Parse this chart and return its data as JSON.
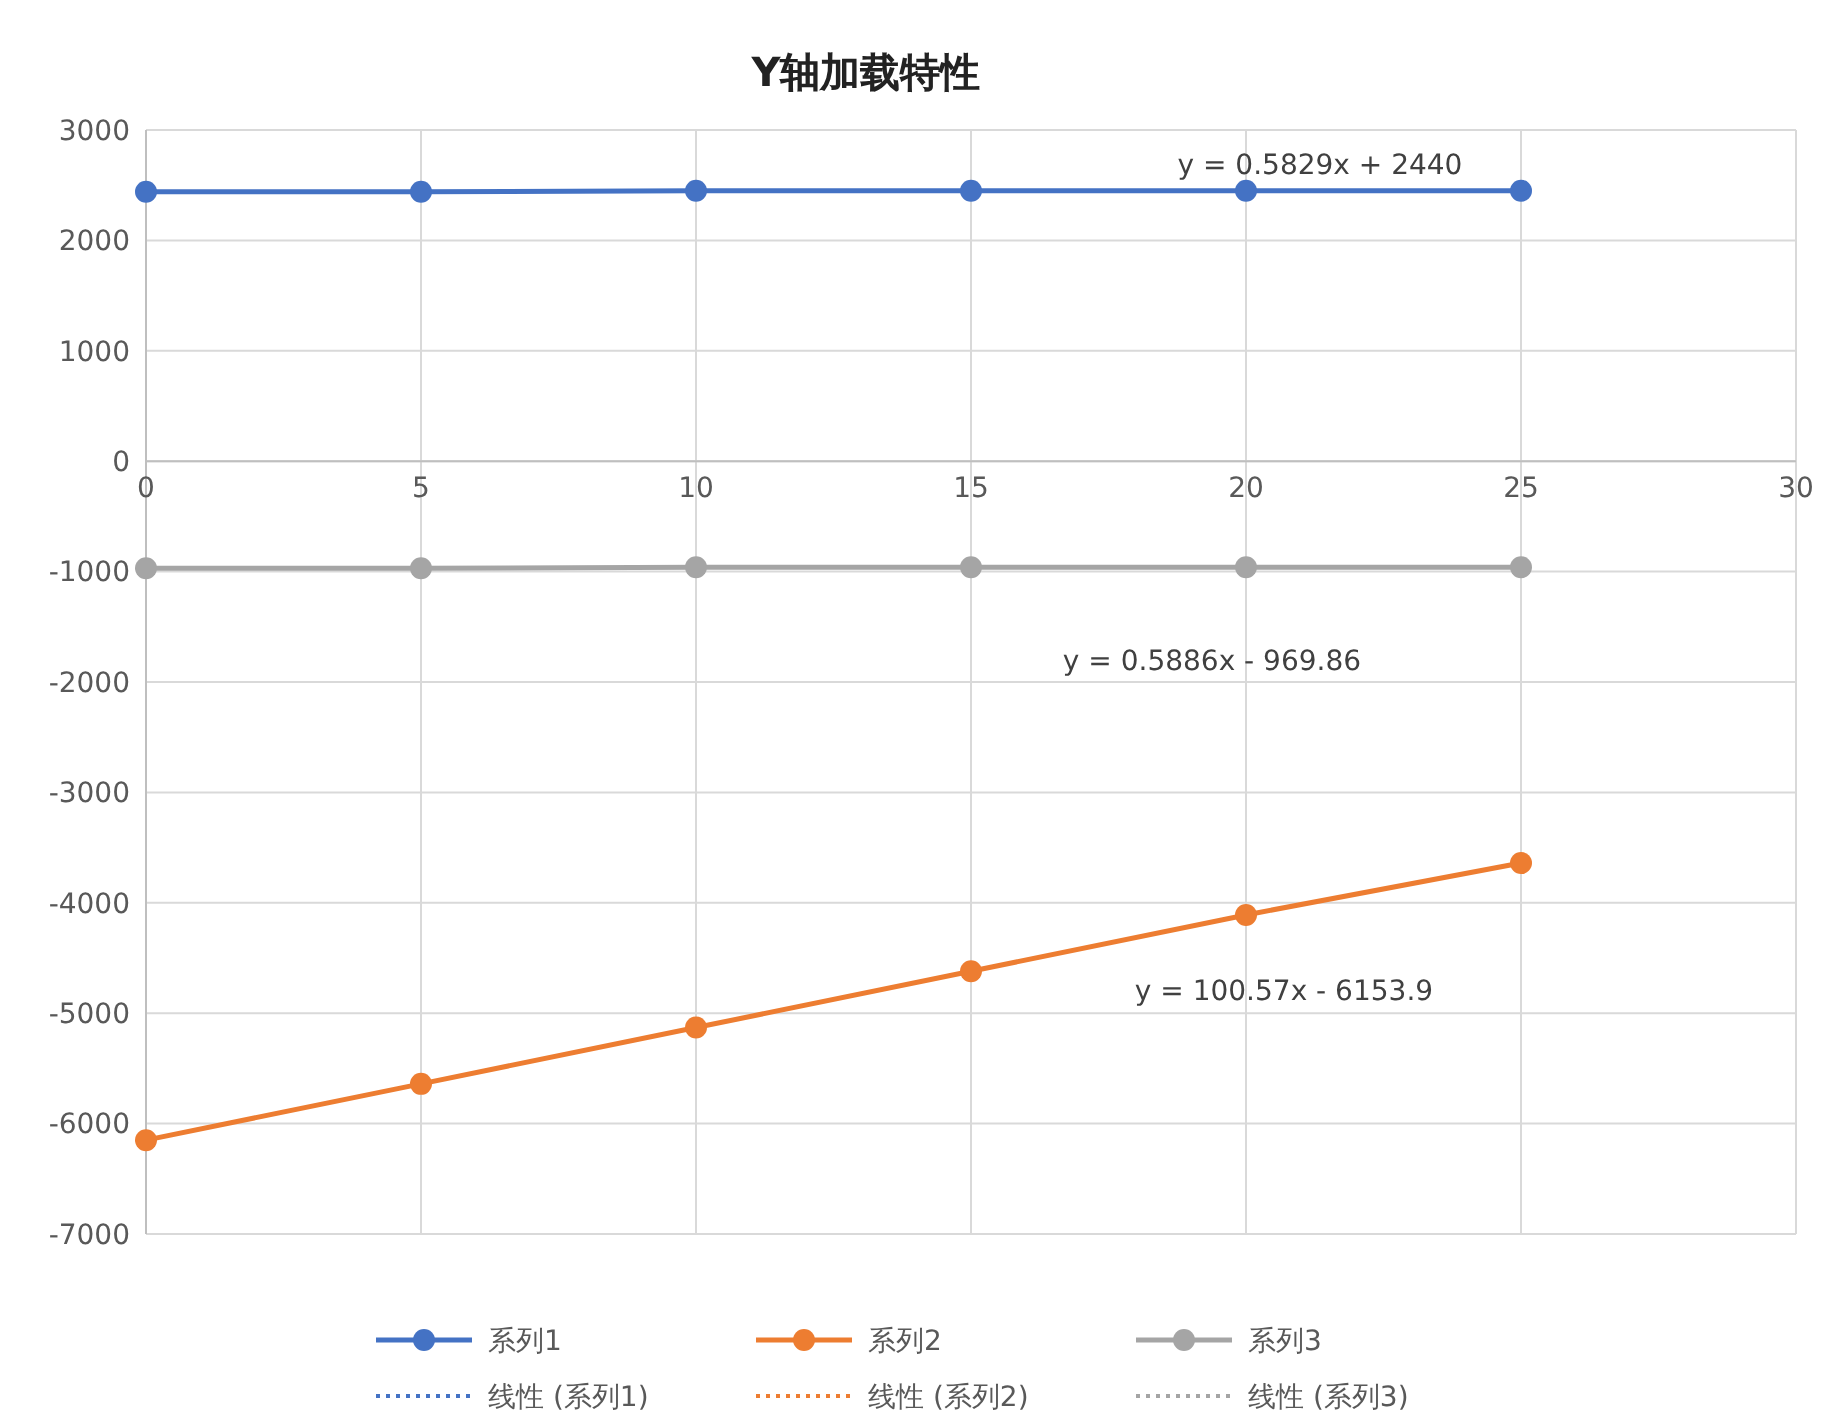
{
  "chart_data": {
    "type": "line",
    "title": "Y轴加载特性",
    "x": [
      0,
      5,
      10,
      15,
      20,
      25
    ],
    "series": [
      {
        "name": "系列1",
        "color": "#4472c4",
        "values": [
          2440,
          2440,
          2450,
          2450,
          2450,
          2450
        ]
      },
      {
        "name": "系列2",
        "color": "#ed7d31",
        "values": [
          -6150,
          -5640,
          -5130,
          -4620,
          -4110,
          -3640
        ]
      },
      {
        "name": "系列3",
        "color": "#a5a5a5",
        "values": [
          -970,
          -970,
          -960,
          -960,
          -960,
          -960
        ]
      },
      {
        "name": "线性 (系列1)",
        "color": "#4472c4",
        "values": [
          null,
          null,
          null,
          null,
          null,
          null
        ],
        "line_style": "dotted",
        "marker": "none"
      },
      {
        "name": "线性 (系列2)",
        "color": "#ed7d31",
        "values": [
          null,
          null,
          null,
          null,
          null,
          null
        ],
        "line_style": "dotted",
        "marker": "none"
      },
      {
        "name": "线性 (系列3)",
        "color": "#a5a5a5",
        "values": [
          null,
          null,
          null,
          null,
          null,
          null
        ],
        "line_style": "dotted",
        "marker": "none"
      }
    ],
    "xlim": [
      0,
      30
    ],
    "xticks": [
      0,
      5,
      10,
      15,
      20,
      25,
      30
    ],
    "ylim": [
      -7000,
      3000
    ],
    "yticks": [
      -7000,
      -6000,
      -5000,
      -4000,
      -3000,
      -2000,
      -1000,
      0,
      1000,
      2000,
      3000
    ],
    "annotations": [
      "y = 0.5829x + 2440",
      "y = 0.5886x - 969.86",
      "y = 100.57x - 6153.9"
    ],
    "grid": true,
    "legend": "bottom",
    "marker": "circle",
    "line_style": "solid"
  }
}
